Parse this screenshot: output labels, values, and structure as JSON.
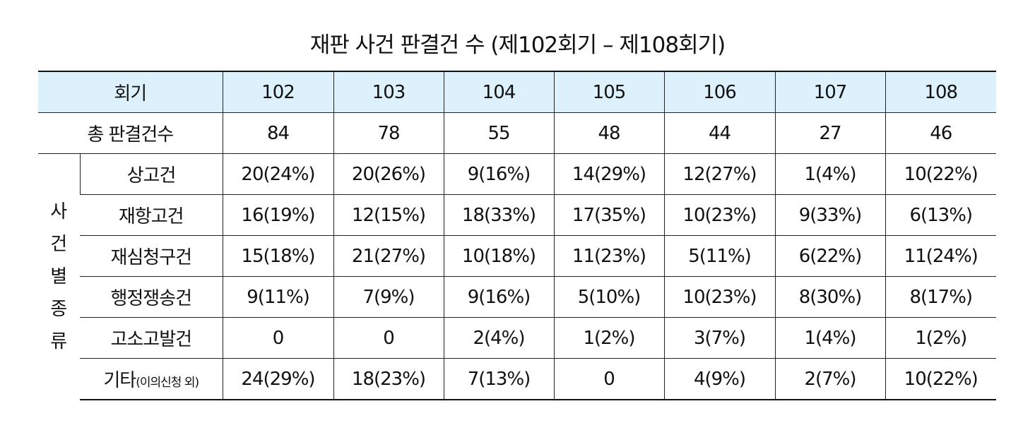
{
  "title": "재판 사건 판결건 수 (제102회기 – 제108회기)",
  "header": {
    "label": "회기",
    "sessions": [
      "102",
      "103",
      "104",
      "105",
      "106",
      "107",
      "108"
    ]
  },
  "total": {
    "label": "총 판결건수",
    "values": [
      "84",
      "78",
      "55",
      "48",
      "44",
      "27",
      "46"
    ]
  },
  "category_label": [
    "사",
    "건",
    "별",
    "종",
    "류"
  ],
  "rows": [
    {
      "label": "상고건",
      "label_note": "",
      "values": [
        "20(24%)",
        "20(26%)",
        "9(16%)",
        "14(29%)",
        "12(27%)",
        "1(4%)",
        "10(22%)"
      ]
    },
    {
      "label": "재항고건",
      "label_note": "",
      "values": [
        "16(19%)",
        "12(15%)",
        "18(33%)",
        "17(35%)",
        "10(23%)",
        "9(33%)",
        "6(13%)"
      ]
    },
    {
      "label": "재심청구건",
      "label_note": "",
      "values": [
        "15(18%)",
        "21(27%)",
        "10(18%)",
        "11(23%)",
        "5(11%)",
        "6(22%)",
        "11(24%)"
      ]
    },
    {
      "label": "행정쟁송건",
      "label_note": "",
      "values": [
        "9(11%)",
        "7(9%)",
        "9(16%)",
        "5(10%)",
        "10(23%)",
        "8(30%)",
        "8(17%)"
      ]
    },
    {
      "label": "고소고발건",
      "label_note": "",
      "values": [
        "0",
        "0",
        "2(4%)",
        "1(2%)",
        "3(7%)",
        "1(4%)",
        "1(2%)"
      ]
    },
    {
      "label": "기타",
      "label_note": "(이의신청 외)",
      "values": [
        "24(29%)",
        "18(23%)",
        "7(13%)",
        "0",
        "4(9%)",
        "2(7%)",
        "10(22%)"
      ]
    }
  ]
}
